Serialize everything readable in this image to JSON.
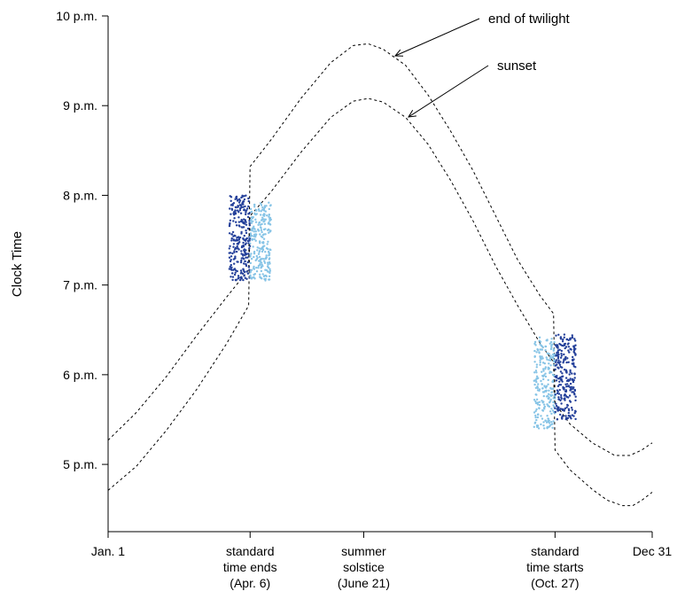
{
  "chart_data": {
    "type": "scatter",
    "title": "",
    "ylabel": "Clock Time",
    "xlabel": "",
    "xlim": [
      1,
      365
    ],
    "ylim": [
      4.25,
      10.0
    ],
    "x_ticks": [
      {
        "day": 1,
        "lines": [
          "Jan. 1"
        ]
      },
      {
        "day": 96,
        "lines": [
          "standard",
          "time ends",
          "(Apr. 6)"
        ]
      },
      {
        "day": 172,
        "lines": [
          "summer",
          "solstice",
          "(June 21)"
        ]
      },
      {
        "day": 300,
        "lines": [
          "standard",
          "time starts",
          "(Oct. 27)"
        ]
      },
      {
        "day": 365,
        "lines": [
          "Dec 31"
        ]
      }
    ],
    "y_ticks": [
      {
        "hour": 5,
        "label": "5 p.m."
      },
      {
        "hour": 6,
        "label": "6 p.m."
      },
      {
        "hour": 7,
        "label": "7 p.m."
      },
      {
        "hour": 8,
        "label": "8 p.m."
      },
      {
        "hour": 9,
        "label": "9 p.m."
      },
      {
        "hour": 10,
        "label": "10 p.m."
      }
    ],
    "series": [
      {
        "name": "end of twilight",
        "style": "dashed",
        "color": "#000000",
        "points": [
          [
            1,
            5.27
          ],
          [
            20,
            5.58
          ],
          [
            40,
            5.98
          ],
          [
            60,
            6.43
          ],
          [
            80,
            6.86
          ],
          [
            95,
            7.17
          ],
          [
            96,
            8.32
          ],
          [
            110,
            8.62
          ],
          [
            130,
            9.08
          ],
          [
            150,
            9.48
          ],
          [
            165,
            9.67
          ],
          [
            175,
            9.69
          ],
          [
            185,
            9.63
          ],
          [
            200,
            9.45
          ],
          [
            215,
            9.12
          ],
          [
            230,
            8.72
          ],
          [
            245,
            8.28
          ],
          [
            260,
            7.78
          ],
          [
            275,
            7.28
          ],
          [
            290,
            6.88
          ],
          [
            299,
            6.68
          ],
          [
            300,
            5.68
          ],
          [
            310,
            5.45
          ],
          [
            325,
            5.24
          ],
          [
            340,
            5.1
          ],
          [
            350,
            5.1
          ],
          [
            358,
            5.16
          ],
          [
            365,
            5.24
          ]
        ],
        "label_anchor": [
          172,
          9.69
        ]
      },
      {
        "name": "sunset",
        "style": "dashed",
        "color": "#000000",
        "points": [
          [
            1,
            4.71
          ],
          [
            20,
            4.98
          ],
          [
            40,
            5.38
          ],
          [
            60,
            5.83
          ],
          [
            80,
            6.34
          ],
          [
            95,
            6.77
          ],
          [
            96,
            7.77
          ],
          [
            110,
            8.04
          ],
          [
            130,
            8.48
          ],
          [
            150,
            8.87
          ],
          [
            165,
            9.05
          ],
          [
            175,
            9.08
          ],
          [
            185,
            9.04
          ],
          [
            200,
            8.87
          ],
          [
            215,
            8.57
          ],
          [
            230,
            8.17
          ],
          [
            245,
            7.72
          ],
          [
            260,
            7.22
          ],
          [
            275,
            6.77
          ],
          [
            290,
            6.35
          ],
          [
            299,
            6.14
          ],
          [
            300,
            5.16
          ],
          [
            310,
            4.94
          ],
          [
            325,
            4.72
          ],
          [
            335,
            4.6
          ],
          [
            345,
            4.54
          ],
          [
            352,
            4.54
          ],
          [
            358,
            4.6
          ],
          [
            365,
            4.69
          ]
        ],
        "label_anchor": [
          172,
          9.08
        ]
      },
      {
        "name": "",
        "kind": "scatter",
        "color": "#24409a",
        "x_range": [
          82,
          96
        ],
        "y_range": [
          7.05,
          8.0
        ],
        "count": 260
      },
      {
        "name": "",
        "kind": "scatter",
        "color": "#87c4e6",
        "x_range": [
          96,
          110
        ],
        "y_range": [
          7.05,
          7.92
        ],
        "count": 240
      },
      {
        "name": "",
        "kind": "scatter",
        "color": "#87c4e6",
        "x_range": [
          286,
          300
        ],
        "y_range": [
          5.4,
          6.42
        ],
        "count": 240
      },
      {
        "name": "",
        "kind": "scatter",
        "color": "#24409a",
        "x_range": [
          300,
          314
        ],
        "y_range": [
          5.5,
          6.45
        ],
        "count": 250
      }
    ],
    "annotations": [
      {
        "text": "end of twilight",
        "series": "end of twilight"
      },
      {
        "text": "sunset",
        "series": "sunset"
      }
    ],
    "grid": false,
    "legend": "none"
  }
}
